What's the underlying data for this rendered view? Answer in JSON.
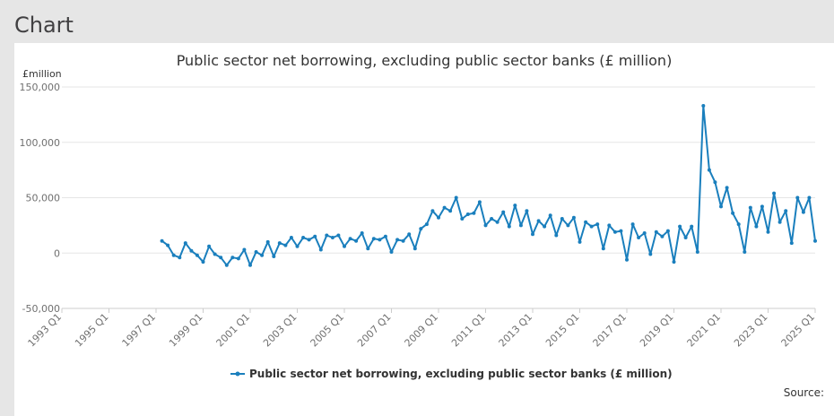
{
  "page": {
    "heading": "Chart",
    "source_label": "Source:"
  },
  "colors": {
    "series": "#1a7fbd",
    "grid": "#e6e6e6",
    "axis": "#cccccc"
  },
  "chart_data": {
    "type": "line",
    "title": "Public sector net borrowing, excluding public sector banks (£ million)",
    "unit_label": "£million",
    "xlabel": "",
    "ylabel": "£million",
    "ylim": [
      -50000,
      150000
    ],
    "yticks": [
      150000,
      100000,
      50000,
      0,
      -50000
    ],
    "ytick_labels": [
      "150,000",
      "100,000",
      "50,000",
      "0",
      "-50,000"
    ],
    "xlim": [
      "1993 Q1",
      "2025 Q1"
    ],
    "xtick_labels": [
      "1993 Q1",
      "1995 Q1",
      "1997 Q1",
      "1999 Q1",
      "2001 Q1",
      "2003 Q1",
      "2005 Q1",
      "2007 Q1",
      "2009 Q1",
      "2011 Q1",
      "2013 Q1",
      "2015 Q1",
      "2017 Q1",
      "2019 Q1",
      "2021 Q1",
      "2023 Q1",
      "2025 Q1"
    ],
    "grid": true,
    "legend_position": "bottom-center",
    "series": [
      {
        "name": "Public sector net borrowing, excluding public sector banks (£ million)",
        "start_quarter": "1997 Q2",
        "values": [
          11000,
          7000,
          -2000,
          -4000,
          9000,
          2000,
          -2000,
          -8000,
          6000,
          -1000,
          -4000,
          -11000,
          -4000,
          -5000,
          3000,
          -11000,
          1000,
          -2000,
          10000,
          -3000,
          9000,
          7000,
          14000,
          6000,
          14000,
          12000,
          15000,
          3000,
          16000,
          14000,
          16000,
          6000,
          13000,
          11000,
          18000,
          4000,
          13000,
          12000,
          15000,
          1000,
          12000,
          11000,
          17000,
          4000,
          22000,
          26000,
          38000,
          32000,
          41000,
          38000,
          50000,
          31000,
          35000,
          36000,
          46000,
          25000,
          31000,
          28000,
          37000,
          24000,
          43000,
          25000,
          38000,
          17000,
          29000,
          24000,
          34000,
          16000,
          31000,
          25000,
          32000,
          10000,
          28000,
          24000,
          26000,
          4000,
          25000,
          19000,
          20000,
          -6000,
          26000,
          14000,
          18000,
          -1000,
          19000,
          15000,
          20000,
          -8000,
          24000,
          14000,
          24000,
          1000,
          133000,
          75000,
          64000,
          42000,
          59000,
          36000,
          26000,
          1000,
          41000,
          24000,
          42000,
          19000,
          54000,
          28000,
          38000,
          9000,
          50000,
          37000,
          50000,
          11000
        ]
      }
    ]
  }
}
